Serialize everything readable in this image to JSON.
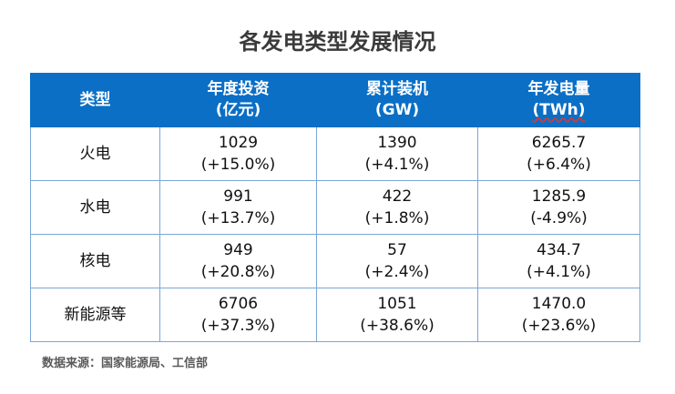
{
  "title": "各发电类型发展情况",
  "header": {
    "col0": "类型",
    "col1_line1": "年度投资",
    "col1_line2": "(亿元)",
    "col2_line1": "累计装机",
    "col2_line2": "(GW)",
    "col3_line1": "年发电量",
    "col3_line2": "(TWh)"
  },
  "rows": [
    {
      "type": "火电",
      "inv": "1029",
      "inv_chg": "(+15.0%)",
      "cap": "1390",
      "cap_chg": "(+4.1%)",
      "gen": "6265.7",
      "gen_chg": "(+6.4%)"
    },
    {
      "type": "水电",
      "inv": "991",
      "inv_chg": "(+13.7%)",
      "cap": "422",
      "cap_chg": "(+1.8%)",
      "gen": "1285.9",
      "gen_chg": "(-4.9%)"
    },
    {
      "type": "核电",
      "inv": "949",
      "inv_chg": "(+20.8%)",
      "cap": "57",
      "cap_chg": "(+2.4%)",
      "gen": "434.7",
      "gen_chg": "(+4.1%)"
    },
    {
      "type": "新能源等",
      "inv": "6706",
      "inv_chg": "(+37.3%)",
      "cap": "1051",
      "cap_chg": "(+38.6%)",
      "gen": "1470.0",
      "gen_chg": "(+23.6%)"
    }
  ],
  "source": "数据来源：国家能源局、工信部"
}
